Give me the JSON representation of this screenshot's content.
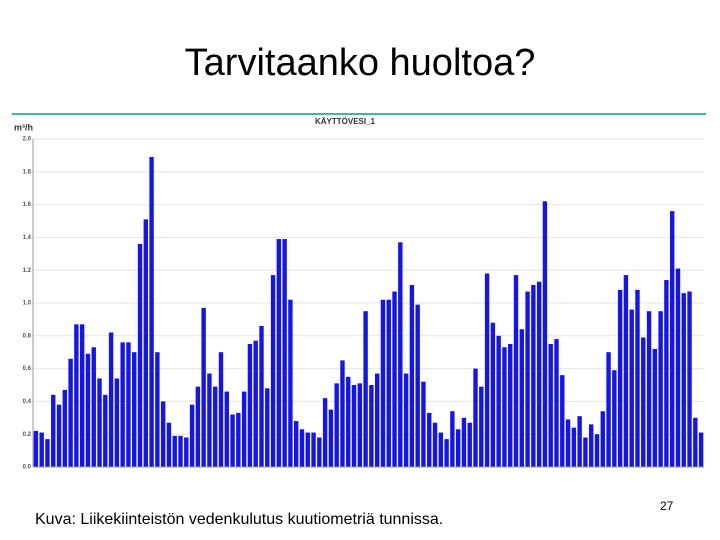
{
  "title": "Tarvitaanko huoltoa?",
  "caption": "Kuva: Liikekiinteistön vedenkulutus kuutiometriä tunnissa.",
  "page_number": "27",
  "chart_data": {
    "type": "bar",
    "title": "KÄYTTÖVESI_1",
    "y_label": "m³/h",
    "color": "#1414f0",
    "values": [
      0.22,
      0.21,
      0.17,
      0.44,
      0.38,
      0.47,
      0.66,
      0.87,
      0.87,
      0.69,
      0.73,
      0.54,
      0.44,
      0.82,
      0.54,
      0.76,
      0.76,
      0.7,
      1.36,
      1.51,
      1.89,
      0.7,
      0.4,
      0.27,
      0.19,
      0.19,
      0.18,
      0.38,
      0.49,
      0.97,
      0.57,
      0.49,
      0.7,
      0.46,
      0.32,
      0.33,
      0.46,
      0.75,
      0.77,
      0.86,
      0.48,
      1.17,
      1.39,
      1.39,
      1.02,
      0.28,
      0.23,
      0.21,
      0.21,
      0.18,
      0.42,
      0.35,
      0.51,
      0.65,
      0.55,
      0.5,
      0.51,
      0.95,
      0.5,
      0.57,
      1.02,
      1.02,
      1.07,
      1.37,
      0.57,
      1.11,
      0.99,
      0.52,
      0.33,
      0.27,
      0.21,
      0.17,
      0.34,
      0.23,
      0.3,
      0.27,
      0.6,
      0.49,
      1.18,
      0.88,
      0.8,
      0.73,
      0.75,
      1.17,
      0.84,
      1.07,
      1.11,
      1.13,
      1.62,
      0.75,
      0.78,
      0.56,
      0.29,
      0.24,
      0.31,
      0.18,
      0.26,
      0.2,
      0.34,
      0.7,
      0.59,
      1.08,
      1.17,
      0.96,
      1.08,
      0.79,
      0.95,
      0.72,
      0.95,
      1.14,
      1.56,
      1.21,
      1.06,
      1.07,
      0.3,
      0.21
    ],
    "ylim": [
      0,
      2.0
    ],
    "yticks": [
      {
        "value": 0,
        "label": "0.0"
      },
      {
        "value": 0.2,
        "label": "0.2"
      },
      {
        "value": 0.4,
        "label": "0.4"
      },
      {
        "value": 0.6,
        "label": "0.6"
      },
      {
        "value": 0.8,
        "label": "0.8"
      },
      {
        "value": 1.0,
        "label": "1.0"
      },
      {
        "value": 1.2,
        "label": "1.2"
      },
      {
        "value": 1.4,
        "label": "1.4"
      },
      {
        "value": 1.6,
        "label": "1.6"
      },
      {
        "value": 1.8,
        "label": "1.8"
      },
      {
        "value": 2.0,
        "label": "2.0"
      }
    ],
    "grid": true
  }
}
